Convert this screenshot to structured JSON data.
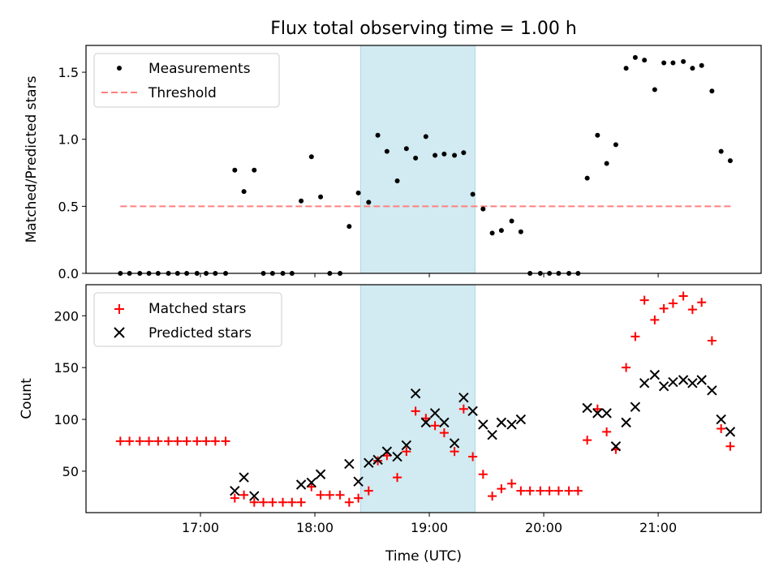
{
  "title": "Flux total observing time = 1.00 h",
  "colors": {
    "measure": "#000000",
    "threshold": "#ff8080",
    "matched": "#ff0000",
    "predicted": "#000000",
    "shade": "#add8e6"
  },
  "chart_data": [
    {
      "type": "scatter",
      "ylabel": "Matched/Predicted stars",
      "ylim": [
        0,
        1.7
      ],
      "yticks": [
        "0.0",
        "0.5",
        "1.0",
        "1.5"
      ],
      "ytick_values": [
        0,
        0.5,
        1.0,
        1.5
      ],
      "xlim": [
        16.0,
        21.9
      ],
      "shaded_span": [
        18.4,
        19.4
      ],
      "legend": {
        "placement": "top-left",
        "measurements_label": "Measurements",
        "threshold_label": "Threshold"
      },
      "threshold": {
        "y": 0.5,
        "x": [
          16.3,
          21.65
        ]
      },
      "measurements": {
        "x": [
          16.3,
          16.38,
          16.47,
          16.55,
          16.63,
          16.72,
          16.8,
          16.88,
          16.97,
          17.05,
          17.13,
          17.22,
          17.3,
          17.38,
          17.47,
          17.55,
          17.63,
          17.72,
          17.8,
          17.88,
          17.97,
          18.05,
          18.13,
          18.22,
          18.3,
          18.38,
          18.47,
          18.55,
          18.63,
          18.72,
          18.8,
          18.88,
          18.97,
          19.05,
          19.13,
          19.22,
          19.3,
          19.38,
          19.47,
          19.55,
          19.63,
          19.72,
          19.8,
          19.88,
          19.97,
          20.05,
          20.13,
          20.22,
          20.3,
          20.38,
          20.47,
          20.55,
          20.63,
          20.72,
          20.8,
          20.88,
          20.97,
          21.05,
          21.13,
          21.22,
          21.3,
          21.38,
          21.47,
          21.55,
          21.63
        ],
        "y": [
          0,
          0,
          0,
          0,
          0,
          0,
          0,
          0,
          0,
          0,
          0,
          0,
          0.77,
          0.61,
          0.77,
          0,
          0,
          0,
          0,
          0.54,
          0.87,
          0.57,
          0,
          0,
          0.35,
          0.6,
          0.53,
          1.03,
          0.91,
          0.69,
          0.93,
          0.86,
          1.02,
          0.88,
          0.89,
          0.88,
          0.9,
          0.59,
          0.48,
          0.3,
          0.32,
          0.39,
          0.31,
          0,
          0,
          0,
          0,
          0,
          0,
          0.71,
          1.03,
          0.82,
          0.96,
          1.53,
          1.61,
          1.59,
          1.37,
          1.57,
          1.57,
          1.58,
          1.53,
          1.55,
          1.36,
          0.91,
          0.84
        ]
      }
    },
    {
      "type": "scatter",
      "ylabel": "Count",
      "xlabel": "Time (UTC)",
      "ylim": [
        10,
        230
      ],
      "yticks": [
        "50",
        "100",
        "150",
        "200"
      ],
      "ytick_values": [
        50,
        100,
        150,
        200
      ],
      "xlim": [
        16.0,
        21.9
      ],
      "xticks": [
        "17:00",
        "18:00",
        "19:00",
        "20:00",
        "21:00"
      ],
      "xtick_values": [
        17,
        18,
        19,
        20,
        21
      ],
      "shaded_span": [
        18.4,
        19.4
      ],
      "legend": {
        "placement": "top-left",
        "matched_label": "Matched stars",
        "predicted_label": "Predicted stars"
      },
      "matched": {
        "x": [
          16.3,
          16.38,
          16.47,
          16.55,
          16.63,
          16.72,
          16.8,
          16.88,
          16.97,
          17.05,
          17.13,
          17.22,
          17.3,
          17.38,
          17.47,
          17.55,
          17.63,
          17.72,
          17.8,
          17.88,
          17.97,
          18.05,
          18.13,
          18.22,
          18.3,
          18.38,
          18.47,
          18.55,
          18.63,
          18.72,
          18.8,
          18.88,
          18.97,
          19.05,
          19.13,
          19.22,
          19.3,
          19.38,
          19.47,
          19.55,
          19.63,
          19.72,
          19.8,
          19.88,
          19.97,
          20.05,
          20.13,
          20.22,
          20.3,
          20.38,
          20.47,
          20.55,
          20.63,
          20.72,
          20.8,
          20.88,
          20.97,
          21.05,
          21.13,
          21.22,
          21.3,
          21.38,
          21.47,
          21.55,
          21.63
        ],
        "y": [
          79,
          79,
          79,
          79,
          79,
          79,
          79,
          79,
          79,
          79,
          79,
          79,
          24,
          27,
          20,
          20,
          20,
          20,
          20,
          20,
          35,
          27,
          27,
          27,
          20,
          24,
          31,
          60,
          65,
          44,
          69,
          108,
          101,
          94,
          87,
          69,
          110,
          64,
          47,
          26,
          33,
          38,
          31,
          31,
          31,
          31,
          31,
          31,
          31,
          80,
          110,
          88,
          71,
          150,
          180,
          215,
          196,
          207,
          212,
          219,
          206,
          213,
          176,
          91,
          74
        ]
      },
      "predicted": {
        "x": [
          17.3,
          17.38,
          17.47,
          17.88,
          17.97,
          18.05,
          18.3,
          18.38,
          18.47,
          18.55,
          18.63,
          18.72,
          18.8,
          18.88,
          18.97,
          19.05,
          19.13,
          19.22,
          19.3,
          19.38,
          19.47,
          19.55,
          19.63,
          19.72,
          19.8,
          20.38,
          20.47,
          20.55,
          20.63,
          20.72,
          20.8,
          20.88,
          20.97,
          21.05,
          21.13,
          21.22,
          21.3,
          21.38,
          21.47,
          21.55,
          21.63
        ],
        "y": [
          31,
          44,
          26,
          37,
          39,
          47,
          57,
          40,
          58,
          61,
          69,
          64,
          75,
          125,
          97,
          106,
          97,
          77,
          121,
          108,
          95,
          85,
          97,
          95,
          100,
          111,
          106,
          106,
          74,
          97,
          112,
          135,
          143,
          132,
          136,
          138,
          135,
          138,
          128,
          100,
          88
        ]
      }
    }
  ]
}
